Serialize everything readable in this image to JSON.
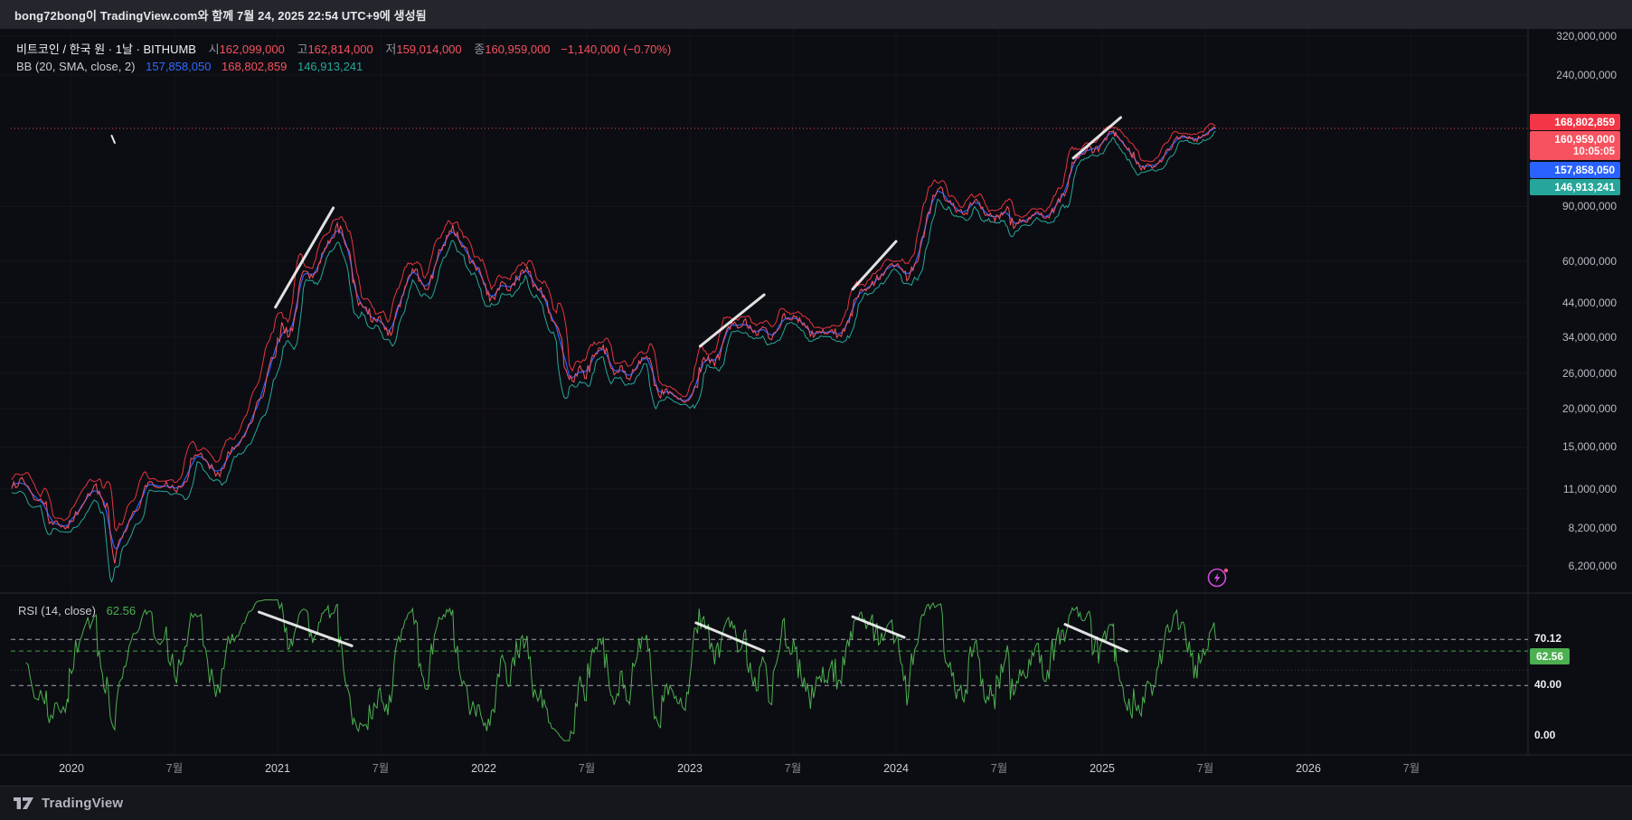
{
  "meta": {
    "attribution": "bong72bong이 TradingView.com와 함께 7월 24, 2025 22:54 UTC+9에 생성됨"
  },
  "legend": {
    "symbol": {
      "title": "비트코인 / 한국 원 · 1날 · BITHUMB",
      "open_label": "시",
      "open": "162,099,000",
      "high_label": "고",
      "high": "162,814,000",
      "low_label": "저",
      "low": "159,014,000",
      "close_label": "종",
      "close": "160,959,000",
      "change": "−1,140,000 (−0.70%)"
    },
    "bb": {
      "title": "BB (20, SMA, close, 2)",
      "basis": "157,858,050",
      "upper": "168,802,859",
      "lower": "146,913,241"
    },
    "rsi": {
      "title": "RSI (14, close)",
      "value": "62.56"
    }
  },
  "price_axis": {
    "ticks": [
      {
        "label": "320,000,000",
        "value": 320000000
      },
      {
        "label": "240,000,000",
        "value": 240000000
      },
      {
        "label": "90,000,000",
        "value": 90000000
      },
      {
        "label": "60,000,000",
        "value": 60000000
      },
      {
        "label": "44,000,000",
        "value": 44000000
      },
      {
        "label": "34,000,000",
        "value": 34000000
      },
      {
        "label": "26,000,000",
        "value": 26000000
      },
      {
        "label": "20,000,000",
        "value": 20000000
      },
      {
        "label": "15,000,000",
        "value": 15000000
      },
      {
        "label": "11,000,000",
        "value": 11000000
      },
      {
        "label": "8,200,000",
        "value": 8200000
      },
      {
        "label": "6,200,000",
        "value": 6200000
      }
    ],
    "badges": [
      {
        "name": "bb-upper",
        "label": "168,802,859",
        "value": 168802859,
        "color": "#f23645"
      },
      {
        "name": "last-price",
        "label": "160,959,000",
        "sub": "10:05:05",
        "value": 160959000,
        "color": "#f7525f"
      },
      {
        "name": "bb-basis",
        "label": "157,858,050",
        "value": 157858050,
        "color": "#2962ff"
      },
      {
        "name": "bb-lower",
        "label": "146,913,241",
        "value": 146913241,
        "color": "#26a69a"
      }
    ]
  },
  "rsi_axis": {
    "ticks": [
      {
        "label": "70.12",
        "value": 70.12
      },
      {
        "label": "40.00",
        "value": 40
      },
      {
        "label": "0.00",
        "value": 0
      }
    ],
    "badge": {
      "label": "62.56",
      "value": 62.56,
      "color": "#4caf50"
    }
  },
  "time_axis": {
    "labels": [
      {
        "label": "2020",
        "t": 2020,
        "type": "year"
      },
      {
        "label": "7월",
        "t": 2020.5,
        "type": "month"
      },
      {
        "label": "2021",
        "t": 2021,
        "type": "year"
      },
      {
        "label": "7월",
        "t": 2021.5,
        "type": "month"
      },
      {
        "label": "2022",
        "t": 2022,
        "type": "year"
      },
      {
        "label": "7월",
        "t": 2022.5,
        "type": "month"
      },
      {
        "label": "2023",
        "t": 2023,
        "type": "year"
      },
      {
        "label": "7월",
        "t": 2023.5,
        "type": "month"
      },
      {
        "label": "2024",
        "t": 2024,
        "type": "year"
      },
      {
        "label": "7월",
        "t": 2024.5,
        "type": "month"
      },
      {
        "label": "2025",
        "t": 2025,
        "type": "year"
      },
      {
        "label": "7월",
        "t": 2025.5,
        "type": "month"
      },
      {
        "label": "2026",
        "t": 2026,
        "type": "year"
      },
      {
        "label": "7월",
        "t": 2026.5,
        "type": "month"
      }
    ]
  },
  "footer": {
    "brand": "TradingView"
  },
  "chart_data": {
    "type": "line",
    "title": "비트코인 / 한국 원 · 1날 · BITHUMB",
    "symbol": "비트코인 / 한국 원",
    "exchange": "BITHUMB",
    "interval": "1날",
    "scale": "log",
    "ohlc": {
      "open": 162099000,
      "high": 162814000,
      "low": 159014000,
      "close": 160959000,
      "change": -1140000,
      "change_pct": -0.7
    },
    "countdown": "10:05:05",
    "indicators": {
      "bollinger": {
        "period": 20,
        "source": "close",
        "stddev": 2,
        "basis": 157858050,
        "upper": 168802859,
        "lower": 146913241,
        "colors": {
          "basis": "#2962ff",
          "upper": "#f23645",
          "lower": "#26a69a"
        }
      },
      "rsi": {
        "period": 14,
        "source": "close",
        "value": 62.56,
        "levels": [
          70.12,
          40.0
        ],
        "color": "#4caf50"
      }
    },
    "colors": {
      "price": "#f7525f",
      "background": "#0c0d12",
      "grid": "rgba(255,255,255,0.035)"
    },
    "ylim": [
      5050000,
      337000000
    ],
    "rsi_ylim": [
      0,
      100
    ],
    "price_unit": 1000000,
    "price_points": [
      [
        2019.71,
        11
      ],
      [
        2019.75,
        11.8
      ],
      [
        2019.79,
        11.2
      ],
      [
        2019.83,
        10.1
      ],
      [
        2019.87,
        9.8
      ],
      [
        2019.9,
        8.6
      ],
      [
        2019.94,
        8.4
      ],
      [
        2019.98,
        8.3
      ],
      [
        2020,
        8.6
      ],
      [
        2020.04,
        9.4
      ],
      [
        2020.08,
        10.6
      ],
      [
        2020.12,
        11.4
      ],
      [
        2020.15,
        10.2
      ],
      [
        2020.18,
        9.4
      ],
      [
        2020.21,
        6.3
      ],
      [
        2020.24,
        7.6
      ],
      [
        2020.27,
        8.2
      ],
      [
        2020.31,
        9.3
      ],
      [
        2020.35,
        10.8
      ],
      [
        2020.38,
        11.6
      ],
      [
        2020.42,
        11.1
      ],
      [
        2020.46,
        11.6
      ],
      [
        2020.5,
        10.9
      ],
      [
        2020.54,
        11.2
      ],
      [
        2020.58,
        13.8
      ],
      [
        2020.62,
        14.2
      ],
      [
        2020.66,
        13.4
      ],
      [
        2020.7,
        12.1
      ],
      [
        2020.74,
        12.8
      ],
      [
        2020.78,
        15
      ],
      [
        2020.82,
        15.6
      ],
      [
        2020.86,
        17.8
      ],
      [
        2020.9,
        21
      ],
      [
        2020.94,
        23.5
      ],
      [
        2020.98,
        29
      ],
      [
        2021.02,
        38
      ],
      [
        2021.05,
        34
      ],
      [
        2021.08,
        38.5
      ],
      [
        2021.11,
        52
      ],
      [
        2021.14,
        55.5
      ],
      [
        2021.17,
        53
      ],
      [
        2021.2,
        59
      ],
      [
        2021.23,
        66
      ],
      [
        2021.26,
        71
      ],
      [
        2021.29,
        79.5
      ],
      [
        2021.32,
        71
      ],
      [
        2021.35,
        64
      ],
      [
        2021.37,
        52
      ],
      [
        2021.4,
        44
      ],
      [
        2021.43,
        42.5
      ],
      [
        2021.46,
        38
      ],
      [
        2021.49,
        39.5
      ],
      [
        2021.52,
        36
      ],
      [
        2021.55,
        34.5
      ],
      [
        2021.58,
        42
      ],
      [
        2021.61,
        46.5
      ],
      [
        2021.64,
        54
      ],
      [
        2021.67,
        56.5
      ],
      [
        2021.7,
        50.5
      ],
      [
        2021.73,
        48.5
      ],
      [
        2021.76,
        57
      ],
      [
        2021.79,
        65
      ],
      [
        2021.82,
        72.5
      ],
      [
        2021.85,
        78.5
      ],
      [
        2021.88,
        70
      ],
      [
        2021.91,
        66.5
      ],
      [
        2021.94,
        59.5
      ],
      [
        2021.97,
        57
      ],
      [
        2022,
        50.5
      ],
      [
        2022.03,
        44.5
      ],
      [
        2022.06,
        47
      ],
      [
        2022.09,
        51.5
      ],
      [
        2022.12,
        48
      ],
      [
        2022.15,
        50
      ],
      [
        2022.18,
        55.5
      ],
      [
        2022.21,
        57.5
      ],
      [
        2022.24,
        49.5
      ],
      [
        2022.27,
        48.5
      ],
      [
        2022.3,
        45
      ],
      [
        2022.33,
        38.5
      ],
      [
        2022.36,
        36.5
      ],
      [
        2022.4,
        26.5
      ],
      [
        2022.43,
        24.5
      ],
      [
        2022.46,
        27
      ],
      [
        2022.49,
        25
      ],
      [
        2022.52,
        28.5
      ],
      [
        2022.55,
        30
      ],
      [
        2022.58,
        32
      ],
      [
        2022.61,
        28
      ],
      [
        2022.64,
        26
      ],
      [
        2022.67,
        27.5
      ],
      [
        2022.7,
        25
      ],
      [
        2022.73,
        26.5
      ],
      [
        2022.76,
        28
      ],
      [
        2022.79,
        29.5
      ],
      [
        2022.82,
        26.5
      ],
      [
        2022.85,
        22
      ],
      [
        2022.88,
        23
      ],
      [
        2022.91,
        22.5
      ],
      [
        2022.94,
        21.5
      ],
      [
        2022.97,
        21
      ],
      [
        2023,
        21.5
      ],
      [
        2023.03,
        23.5
      ],
      [
        2023.06,
        28.5
      ],
      [
        2023.09,
        29.5
      ],
      [
        2023.12,
        27.5
      ],
      [
        2023.15,
        30.5
      ],
      [
        2023.18,
        36
      ],
      [
        2023.21,
        37.5
      ],
      [
        2023.24,
        36.5
      ],
      [
        2023.27,
        39
      ],
      [
        2023.3,
        36
      ],
      [
        2023.33,
        34.5
      ],
      [
        2023.36,
        36.5
      ],
      [
        2023.39,
        33.5
      ],
      [
        2023.42,
        35.5
      ],
      [
        2023.45,
        40
      ],
      [
        2023.48,
        39
      ],
      [
        2023.51,
        39.5
      ],
      [
        2023.54,
        38
      ],
      [
        2023.57,
        37
      ],
      [
        2023.6,
        34
      ],
      [
        2023.63,
        35.5
      ],
      [
        2023.66,
        35
      ],
      [
        2023.69,
        36
      ],
      [
        2023.72,
        34.5
      ],
      [
        2023.75,
        35.5
      ],
      [
        2023.78,
        40.5
      ],
      [
        2023.81,
        45.5
      ],
      [
        2023.84,
        48
      ],
      [
        2023.87,
        49
      ],
      [
        2023.9,
        51.5
      ],
      [
        2023.93,
        54.5
      ],
      [
        2023.96,
        57.5
      ],
      [
        2024,
        58
      ],
      [
        2024.03,
        56.5
      ],
      [
        2024.06,
        52.5
      ],
      [
        2024.09,
        58.5
      ],
      [
        2024.12,
        69
      ],
      [
        2024.15,
        84
      ],
      [
        2024.18,
        98
      ],
      [
        2024.21,
        103
      ],
      [
        2024.24,
        94
      ],
      [
        2024.27,
        91.5
      ],
      [
        2024.3,
        87.5
      ],
      [
        2024.33,
        84.5
      ],
      [
        2024.36,
        92.5
      ],
      [
        2024.39,
        95
      ],
      [
        2024.42,
        89.5
      ],
      [
        2024.45,
        84
      ],
      [
        2024.48,
        80.5
      ],
      [
        2024.51,
        86
      ],
      [
        2024.54,
        90
      ],
      [
        2024.57,
        76.5
      ],
      [
        2024.6,
        82
      ],
      [
        2024.63,
        80
      ],
      [
        2024.66,
        84.5
      ],
      [
        2024.69,
        86.5
      ],
      [
        2024.72,
        82.5
      ],
      [
        2024.75,
        85.5
      ],
      [
        2024.78,
        92
      ],
      [
        2024.81,
        99
      ],
      [
        2024.84,
        113
      ],
      [
        2024.87,
        127
      ],
      [
        2024.9,
        133
      ],
      [
        2024.93,
        139.5
      ],
      [
        2024.96,
        135
      ],
      [
        2024.99,
        141
      ],
      [
        2025.02,
        147.5
      ],
      [
        2025.05,
        157
      ],
      [
        2025.07,
        152.5
      ],
      [
        2025.1,
        146
      ],
      [
        2025.13,
        139
      ],
      [
        2025.16,
        127.5
      ],
      [
        2025.19,
        118
      ],
      [
        2025.22,
        123.5
      ],
      [
        2025.25,
        121
      ],
      [
        2025.28,
        127
      ],
      [
        2025.31,
        136.5
      ],
      [
        2025.34,
        140
      ],
      [
        2025.37,
        148.5
      ],
      [
        2025.4,
        152
      ],
      [
        2025.43,
        149.5
      ],
      [
        2025.46,
        146
      ],
      [
        2025.49,
        153.5
      ],
      [
        2025.52,
        158.5
      ],
      [
        2025.55,
        160.959
      ]
    ],
    "price_ticks": [
      320000000,
      240000000,
      90000000,
      60000000,
      44000000,
      34000000,
      26000000,
      20000000,
      15000000,
      11000000,
      8200000,
      6200000
    ],
    "x_axis_years": [
      2020,
      2021,
      2022,
      2023,
      2024,
      2025,
      2026
    ],
    "annotations": {
      "price_trendlines": [
        {
          "t1": 2020.99,
          "p1": 42500000,
          "t2": 2021.27,
          "p2": 89000000
        },
        {
          "t1": 2023.05,
          "p1": 31800000,
          "t2": 2023.36,
          "p2": 46600000
        },
        {
          "t1": 2023.79,
          "p1": 48600000,
          "t2": 2024.0,
          "p2": 69400000
        },
        {
          "t1": 2024.86,
          "p1": 129000000,
          "t2": 2025.09,
          "p2": 174500000
        }
      ],
      "mark": {
        "t1": 2020.195,
        "p1": 152500000,
        "t2": 2020.21,
        "p2": 144500000
      },
      "rsi_trendlines": [
        {
          "t1": 2020.91,
          "r1": 88,
          "t2": 2021.36,
          "r2": 66
        },
        {
          "t1": 2023.03,
          "r1": 81,
          "t2": 2023.36,
          "r2": 62.5
        },
        {
          "t1": 2023.79,
          "r1": 85,
          "t2": 2024.04,
          "r2": 71.5
        },
        {
          "t1": 2024.82,
          "r1": 80,
          "t2": 2025.12,
          "r2": 62.5
        }
      ],
      "flash_icon": {
        "t": 2025.56,
        "p": 5670000
      }
    }
  }
}
